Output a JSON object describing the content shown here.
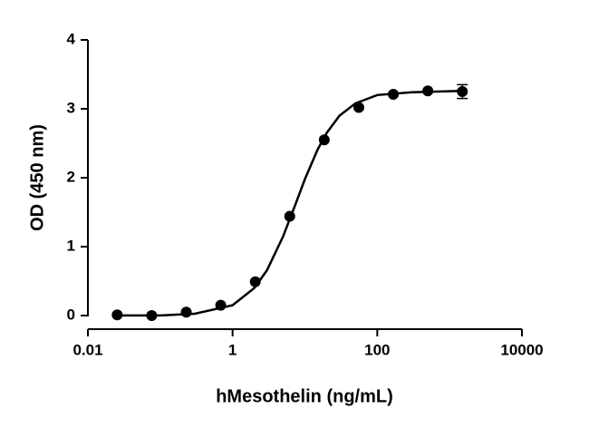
{
  "chart_data": {
    "type": "scatter",
    "xlabel": "hMesothelin (ng/mL)",
    "ylabel": "OD (450 nm)",
    "xscale": "log",
    "x": [
      0.0254,
      0.0762,
      0.229,
      0.686,
      2.06,
      6.17,
      18.5,
      55.6,
      166.7,
      500,
      1500
    ],
    "values": [
      0.01,
      0.0,
      0.05,
      0.15,
      0.49,
      1.44,
      2.55,
      3.02,
      3.21,
      3.26,
      3.25
    ],
    "errors": [
      null,
      null,
      null,
      null,
      null,
      null,
      null,
      null,
      null,
      null,
      0.1
    ],
    "color": "#000000",
    "fit": {
      "x": [
        0.0254,
        0.1,
        0.3,
        1,
        2,
        3,
        5,
        7.5,
        10,
        15,
        20,
        30,
        50,
        100,
        300,
        1500
      ],
      "y": [
        0.001,
        0.001,
        0.026,
        0.15,
        0.4,
        0.66,
        1.15,
        1.63,
        1.98,
        2.41,
        2.65,
        2.9,
        3.08,
        3.2,
        3.24,
        3.26
      ]
    },
    "xlim": [
      0.01,
      10000
    ],
    "xticks": [
      0.01,
      1,
      100,
      10000
    ],
    "ylim": [
      0,
      4
    ],
    "yticks": [
      0,
      1,
      2,
      3,
      4
    ]
  }
}
